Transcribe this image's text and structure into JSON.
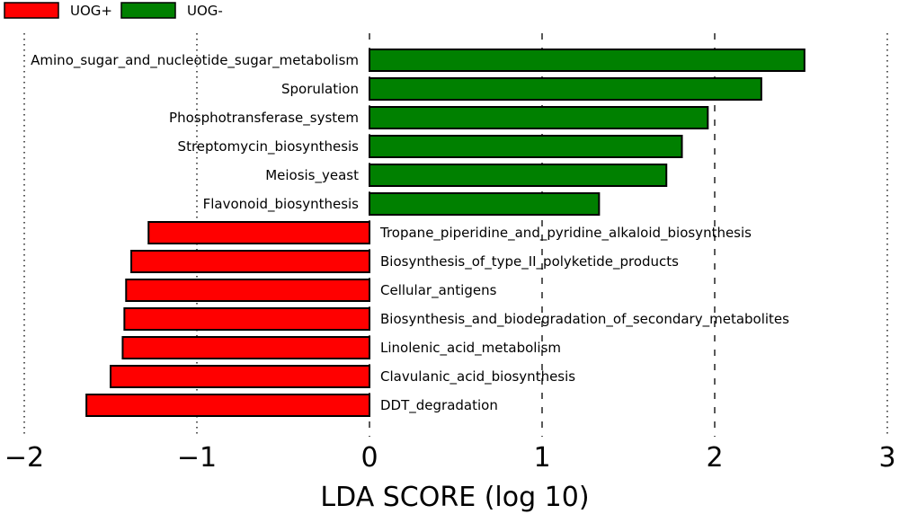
{
  "chart_data": {
    "type": "bar",
    "orientation": "horizontal",
    "xlabel": "LDA SCORE (log 10)",
    "xlim": [
      -2,
      3
    ],
    "xticks": [
      -2,
      -1,
      0,
      1,
      2,
      3
    ],
    "xtick_labels": [
      "−2",
      "−1",
      "0",
      "1",
      "2",
      "3"
    ],
    "grid": "vertical dotted",
    "legend": {
      "position": "top-left",
      "entries": [
        {
          "name": "UOG+",
          "color": "#ff0000"
        },
        {
          "name": "UOG-",
          "color": "#008000"
        }
      ]
    },
    "series": [
      {
        "name": "UOG-",
        "color": "#008000",
        "categories": [
          "Amino_sugar_and_nucleotide_sugar_metabolism",
          "Sporulation",
          "Phosphotransferase_system",
          "Streptomycin_biosynthesis",
          "Meiosis_yeast",
          "Flavonoid_biosynthesis"
        ],
        "values": [
          2.52,
          2.27,
          1.96,
          1.81,
          1.72,
          1.33
        ]
      },
      {
        "name": "UOG+",
        "color": "#ff0000",
        "categories": [
          "Tropane_piperidine_and_pyridine_alkaloid_biosynthesis",
          "Biosynthesis_of_type_II_polyketide_products",
          "Cellular_antigens",
          "Biosynthesis_and_biodegradation_of_secondary_metabolites",
          "Linolenic_acid_metabolism",
          "Clavulanic_acid_biosynthesis",
          "DDT_degradation"
        ],
        "values": [
          -1.28,
          -1.38,
          -1.41,
          -1.42,
          -1.43,
          -1.5,
          -1.64
        ]
      }
    ]
  }
}
